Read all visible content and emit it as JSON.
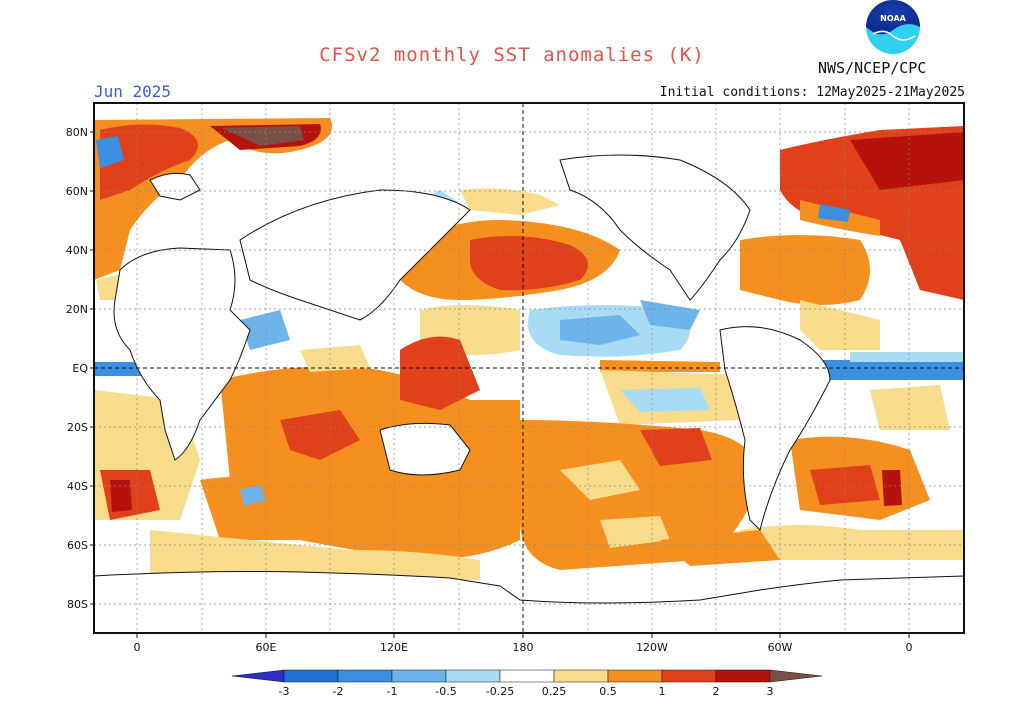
{
  "title": "CFSv2 monthly SST anomalies (K)",
  "month_label": "Jun 2025",
  "initial_conditions": "Initial conditions: 12May2025-21May2025",
  "agency": "NWS/NCEP/CPC",
  "logo_text": "NOAA",
  "lat_labels": [
    "80N",
    "60N",
    "40N",
    "20N",
    "EQ",
    "20S",
    "40S",
    "60S",
    "80S"
  ],
  "lon_labels": [
    "0",
    "60E",
    "120E",
    "180",
    "120W",
    "60W",
    "0"
  ],
  "colorbar": {
    "ticks": [
      "-3",
      "-2",
      "-1",
      "-0.5",
      "-0.25",
      "0.25",
      "0.5",
      "1",
      "2",
      "3"
    ],
    "colors": [
      "#2a2fc8",
      "#1f6fd6",
      "#3b8fe0",
      "#6db4ec",
      "#a8dcf4",
      "#ffffff",
      "#f8dc8c",
      "#f59020",
      "#e0401a",
      "#b5120e",
      "#7a5046"
    ]
  },
  "colors": {
    "title": "#e8504a",
    "month": "#3a5fcd",
    "ocean_neutral": "#ffffff",
    "land": "#ffffff",
    "warm_light": "#f8dc8c",
    "warm_orange": "#f59020",
    "warm_red": "#e0401a",
    "warm_dark": "#b5120e",
    "cool_light": "#a8dcf4",
    "cool_mid": "#6db4ec",
    "cool_blue": "#3b8fe0"
  }
}
